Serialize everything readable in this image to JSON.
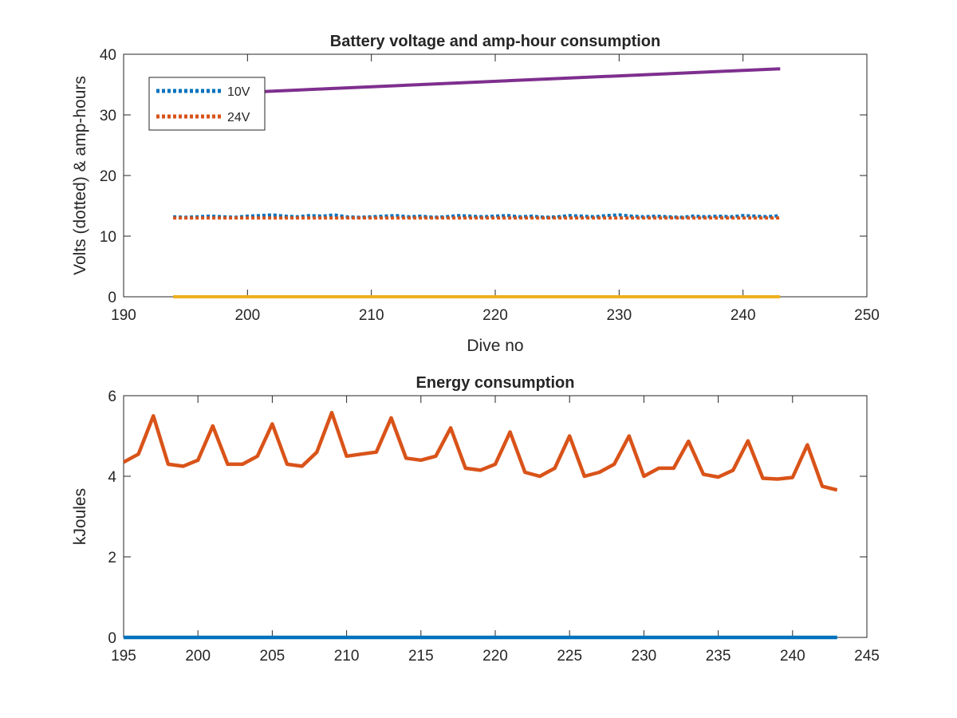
{
  "chart_data": [
    {
      "type": "line",
      "title": "Battery voltage and amp-hour consumption",
      "xlabel": "Dive no",
      "ylabel": "Volts (dotted) & amp-hours",
      "xlim": [
        190,
        250
      ],
      "ylim": [
        0,
        40
      ],
      "xticks": [
        190,
        200,
        210,
        220,
        230,
        240,
        250
      ],
      "yticks": [
        0,
        10,
        20,
        30,
        40
      ],
      "legend_placement": "top-left",
      "grid": false,
      "series": [
        {
          "name": "10V",
          "style": "dotted",
          "color": "#0072BD",
          "x": [
            194,
            195,
            196,
            197,
            198,
            199,
            200,
            201,
            202,
            203,
            204,
            205,
            206,
            207,
            208,
            209,
            210,
            211,
            212,
            213,
            214,
            215,
            216,
            217,
            218,
            219,
            220,
            221,
            222,
            223,
            224,
            225,
            226,
            227,
            228,
            229,
            230,
            231,
            232,
            233,
            234,
            235,
            236,
            237,
            238,
            239,
            240,
            241,
            242,
            243
          ],
          "y": [
            13.2,
            13.1,
            13.2,
            13.3,
            13.2,
            13.1,
            13.3,
            13.4,
            13.5,
            13.3,
            13.2,
            13.4,
            13.3,
            13.5,
            13.2,
            13.1,
            13.2,
            13.3,
            13.4,
            13.2,
            13.3,
            13.1,
            13.2,
            13.4,
            13.3,
            13.2,
            13.3,
            13.4,
            13.2,
            13.3,
            13.1,
            13.2,
            13.4,
            13.3,
            13.2,
            13.4,
            13.5,
            13.3,
            13.2,
            13.3,
            13.2,
            13.1,
            13.3,
            13.2,
            13.3,
            13.2,
            13.4,
            13.3,
            13.2,
            13.4
          ]
        },
        {
          "name": "24V",
          "style": "dotted",
          "color": "#D95319",
          "x": [
            194,
            195,
            196,
            197,
            198,
            199,
            200,
            201,
            202,
            203,
            204,
            205,
            206,
            207,
            208,
            209,
            210,
            211,
            212,
            213,
            214,
            215,
            216,
            217,
            218,
            219,
            220,
            221,
            222,
            223,
            224,
            225,
            226,
            227,
            228,
            229,
            230,
            231,
            232,
            233,
            234,
            235,
            236,
            237,
            238,
            239,
            240,
            241,
            242,
            243
          ],
          "y": [
            13.0,
            13.0,
            13.0,
            13.0,
            13.0,
            13.0,
            13.0,
            13.0,
            13.0,
            13.0,
            13.0,
            13.0,
            13.0,
            13.0,
            13.0,
            13.0,
            13.0,
            13.0,
            13.0,
            13.0,
            13.0,
            13.0,
            13.0,
            13.0,
            13.0,
            13.0,
            13.0,
            13.0,
            13.0,
            13.0,
            13.0,
            13.0,
            13.0,
            13.0,
            13.0,
            13.0,
            13.0,
            13.0,
            13.0,
            13.0,
            13.0,
            13.0,
            13.0,
            13.0,
            13.0,
            13.0,
            13.0,
            13.0,
            13.0,
            13.0
          ]
        },
        {
          "style": "solid",
          "color": "#EDB120",
          "x": [
            194,
            243
          ],
          "y": [
            0,
            0
          ]
        },
        {
          "style": "solid",
          "color": "#7E2F8E",
          "x": [
            194,
            243
          ],
          "y": [
            33.2,
            37.6
          ]
        }
      ]
    },
    {
      "type": "line",
      "title": "Energy consumption",
      "xlabel": "",
      "ylabel": "kJoules",
      "xlim": [
        195,
        245
      ],
      "ylim": [
        0,
        6
      ],
      "xticks": [
        195,
        200,
        205,
        210,
        215,
        220,
        225,
        230,
        235,
        240,
        245
      ],
      "yticks": [
        0,
        2,
        4,
        6
      ],
      "grid": false,
      "series": [
        {
          "style": "solid",
          "color": "#0072BD",
          "x": [
            195,
            243
          ],
          "y": [
            0,
            0
          ]
        },
        {
          "style": "solid",
          "color": "#D95319",
          "x": [
            195,
            196,
            197,
            198,
            199,
            200,
            201,
            202,
            203,
            204,
            205,
            206,
            207,
            208,
            209,
            210,
            211,
            212,
            213,
            214,
            215,
            216,
            217,
            218,
            219,
            220,
            221,
            222,
            223,
            224,
            225,
            226,
            227,
            228,
            229,
            230,
            231,
            232,
            233,
            234,
            235,
            236,
            237,
            238,
            239,
            240,
            241,
            242,
            243
          ],
          "y": [
            4.35,
            4.55,
            5.5,
            4.3,
            4.25,
            4.4,
            5.25,
            4.3,
            4.3,
            4.5,
            5.3,
            4.3,
            4.25,
            4.6,
            5.58,
            4.5,
            4.55,
            4.6,
            5.45,
            4.45,
            4.4,
            4.5,
            5.2,
            4.2,
            4.15,
            4.3,
            5.1,
            4.1,
            4.0,
            4.2,
            5.0,
            4.0,
            4.1,
            4.3,
            5.0,
            4.0,
            4.2,
            4.2,
            4.87,
            4.05,
            3.98,
            4.15,
            4.88,
            3.95,
            3.93,
            3.97,
            4.78,
            3.75,
            3.66
          ]
        }
      ]
    }
  ]
}
